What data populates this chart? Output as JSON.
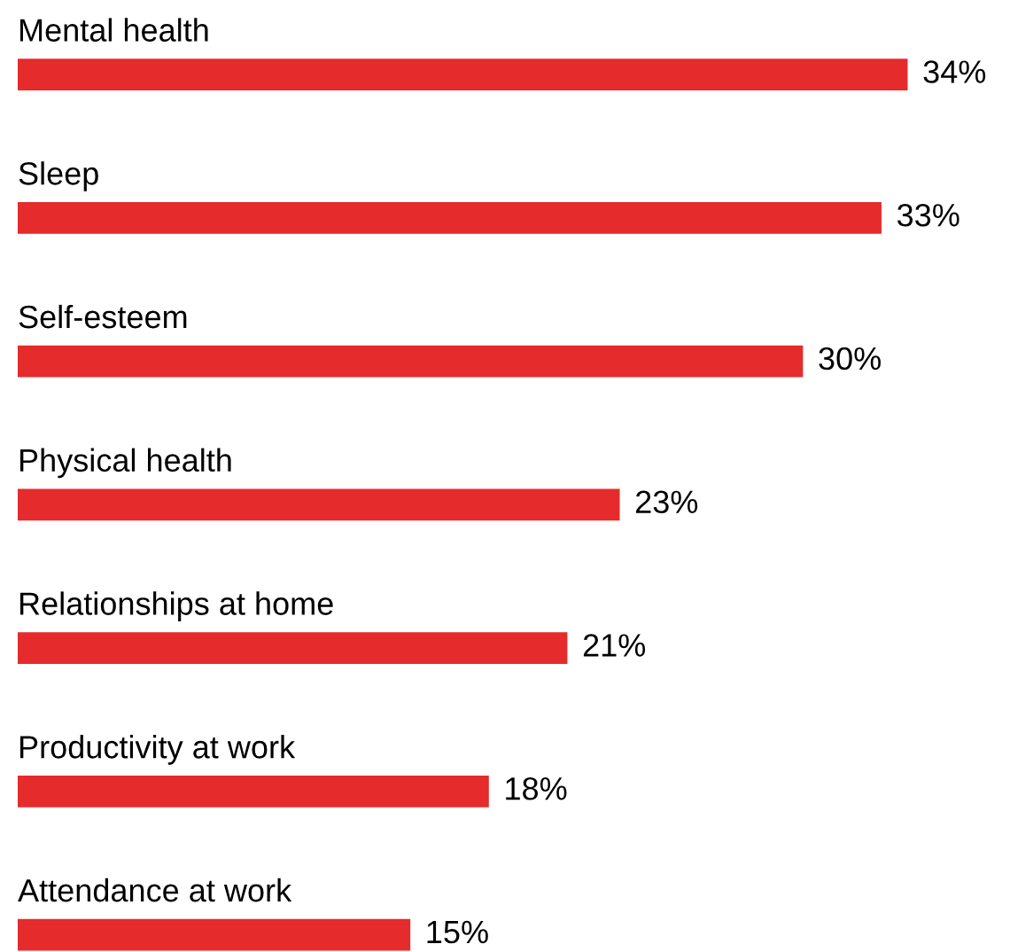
{
  "chart_data": {
    "type": "bar",
    "orientation": "horizontal",
    "categories": [
      "Mental health",
      "Sleep",
      "Self-esteem",
      "Physical health",
      "Relationships at home",
      "Productivity at work",
      "Attendance at work"
    ],
    "values": [
      34,
      33,
      30,
      23,
      21,
      18,
      15
    ],
    "value_labels": [
      "34%",
      "33%",
      "30%",
      "23%",
      "21%",
      "18%",
      "15%"
    ],
    "color": "#e52b2b"
  }
}
